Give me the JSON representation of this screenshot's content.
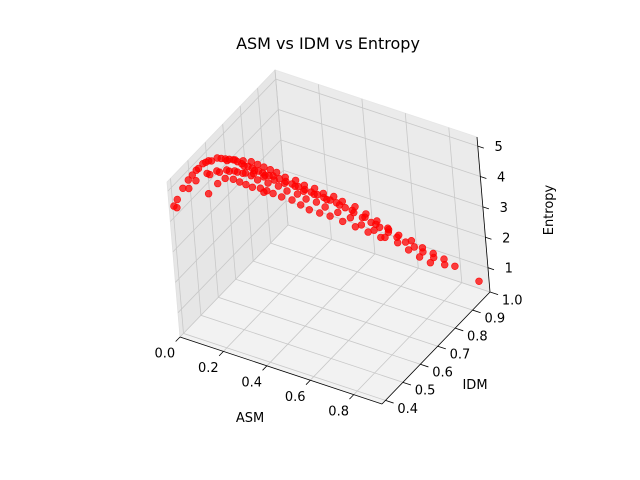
{
  "chart_data": {
    "type": "scatter",
    "projection": "3d",
    "title": "ASM vs IDM vs Entropy",
    "xlabel": "ASM",
    "ylabel": "IDM",
    "zlabel": "Entropy",
    "xlim": [
      0.0,
      0.93
    ],
    "ylim": [
      0.38,
      1.0
    ],
    "zlim": [
      0.2,
      5.3
    ],
    "xticks": [
      "0.0",
      "0.2",
      "0.4",
      "0.6",
      "0.8"
    ],
    "yticks": [
      "0.4",
      "0.5",
      "0.6",
      "0.7",
      "0.8",
      "0.9",
      "1.0"
    ],
    "zticks": [
      "1",
      "2",
      "3",
      "4",
      "5"
    ],
    "grid": true,
    "marker_color": "#ff0000",
    "series": [
      {
        "points": [
          [
            0.005,
            0.4,
            4.4
          ],
          [
            0.006,
            0.42,
            4.5
          ],
          [
            0.01,
            0.45,
            4.7
          ],
          [
            0.012,
            0.48,
            4.8
          ],
          [
            0.015,
            0.5,
            4.85
          ],
          [
            0.018,
            0.52,
            4.9
          ],
          [
            0.02,
            0.53,
            4.9
          ],
          [
            0.025,
            0.55,
            4.95
          ],
          [
            0.03,
            0.56,
            4.95
          ],
          [
            0.035,
            0.57,
            4.95
          ],
          [
            0.04,
            0.58,
            4.9
          ],
          [
            0.05,
            0.6,
            4.9
          ],
          [
            0.06,
            0.61,
            4.85
          ],
          [
            0.07,
            0.62,
            4.8
          ],
          [
            0.08,
            0.63,
            4.75
          ],
          [
            0.09,
            0.64,
            4.7
          ],
          [
            0.1,
            0.65,
            4.6
          ],
          [
            0.11,
            0.66,
            4.5
          ],
          [
            0.12,
            0.66,
            4.45
          ],
          [
            0.13,
            0.67,
            4.4
          ],
          [
            0.14,
            0.68,
            4.3
          ],
          [
            0.15,
            0.68,
            4.25
          ],
          [
            0.16,
            0.69,
            4.2
          ],
          [
            0.17,
            0.7,
            4.1
          ],
          [
            0.18,
            0.7,
            4.05
          ],
          [
            0.19,
            0.71,
            4.0
          ],
          [
            0.2,
            0.72,
            3.95
          ],
          [
            0.22,
            0.73,
            3.85
          ],
          [
            0.24,
            0.74,
            3.75
          ],
          [
            0.26,
            0.75,
            3.65
          ],
          [
            0.28,
            0.76,
            3.55
          ],
          [
            0.3,
            0.77,
            3.45
          ],
          [
            0.32,
            0.78,
            3.35
          ],
          [
            0.34,
            0.79,
            3.25
          ],
          [
            0.36,
            0.8,
            3.15
          ],
          [
            0.38,
            0.81,
            3.05
          ],
          [
            0.4,
            0.82,
            2.95
          ],
          [
            0.43,
            0.83,
            2.8
          ],
          [
            0.46,
            0.84,
            2.65
          ],
          [
            0.49,
            0.85,
            2.5
          ],
          [
            0.52,
            0.86,
            2.35
          ],
          [
            0.55,
            0.87,
            2.2
          ],
          [
            0.58,
            0.88,
            2.05
          ],
          [
            0.61,
            0.89,
            1.9
          ],
          [
            0.64,
            0.9,
            1.75
          ],
          [
            0.67,
            0.91,
            1.6
          ],
          [
            0.7,
            0.92,
            1.45
          ],
          [
            0.74,
            0.93,
            1.3
          ],
          [
            0.78,
            0.94,
            1.1
          ],
          [
            0.9,
            0.98,
            0.6
          ],
          [
            0.01,
            0.41,
            4.3
          ],
          [
            0.02,
            0.47,
            4.6
          ],
          [
            0.03,
            0.5,
            4.7
          ],
          [
            0.05,
            0.54,
            4.75
          ],
          [
            0.07,
            0.57,
            4.7
          ],
          [
            0.09,
            0.6,
            4.6
          ],
          [
            0.11,
            0.62,
            4.5
          ],
          [
            0.13,
            0.64,
            4.35
          ],
          [
            0.15,
            0.66,
            4.2
          ],
          [
            0.17,
            0.67,
            4.05
          ],
          [
            0.2,
            0.69,
            3.9
          ],
          [
            0.23,
            0.71,
            3.75
          ],
          [
            0.26,
            0.72,
            3.6
          ],
          [
            0.29,
            0.74,
            3.45
          ],
          [
            0.32,
            0.75,
            3.3
          ],
          [
            0.35,
            0.77,
            3.15
          ],
          [
            0.38,
            0.78,
            3.0
          ],
          [
            0.42,
            0.8,
            2.8
          ],
          [
            0.46,
            0.82,
            2.6
          ],
          [
            0.5,
            0.83,
            2.4
          ],
          [
            0.54,
            0.85,
            2.2
          ],
          [
            0.58,
            0.86,
            2.0
          ],
          [
            0.62,
            0.88,
            1.8
          ],
          [
            0.66,
            0.89,
            1.6
          ],
          [
            0.7,
            0.9,
            1.4
          ],
          [
            0.74,
            0.91,
            1.25
          ],
          [
            0.08,
            0.52,
            4.9
          ],
          [
            0.1,
            0.55,
            4.85
          ],
          [
            0.12,
            0.58,
            4.75
          ],
          [
            0.14,
            0.6,
            4.65
          ],
          [
            0.16,
            0.62,
            4.55
          ],
          [
            0.18,
            0.64,
            4.45
          ],
          [
            0.21,
            0.66,
            4.3
          ],
          [
            0.24,
            0.68,
            4.15
          ],
          [
            0.27,
            0.7,
            4.0
          ],
          [
            0.3,
            0.72,
            3.85
          ],
          [
            0.33,
            0.73,
            3.7
          ],
          [
            0.36,
            0.75,
            3.55
          ],
          [
            0.4,
            0.77,
            3.35
          ],
          [
            0.44,
            0.79,
            3.15
          ],
          [
            0.48,
            0.81,
            2.95
          ],
          [
            0.52,
            0.83,
            2.7
          ],
          [
            0.56,
            0.84,
            2.5
          ],
          [
            0.6,
            0.86,
            2.3
          ],
          [
            0.04,
            0.55,
            4.0
          ],
          [
            0.06,
            0.58,
            4.2
          ],
          [
            0.08,
            0.6,
            4.3
          ],
          [
            0.1,
            0.62,
            4.2
          ],
          [
            0.12,
            0.63,
            4.1
          ],
          [
            0.14,
            0.64,
            4.0
          ],
          [
            0.16,
            0.65,
            3.9
          ],
          [
            0.18,
            0.67,
            3.8
          ],
          [
            0.2,
            0.68,
            3.7
          ],
          [
            0.22,
            0.69,
            3.6
          ],
          [
            0.25,
            0.7,
            3.5
          ],
          [
            0.28,
            0.72,
            3.35
          ],
          [
            0.31,
            0.73,
            3.2
          ],
          [
            0.34,
            0.74,
            3.05
          ],
          [
            0.37,
            0.76,
            2.9
          ],
          [
            0.4,
            0.78,
            2.75
          ],
          [
            0.44,
            0.8,
            2.55
          ],
          [
            0.48,
            0.82,
            2.35
          ],
          [
            0.52,
            0.84,
            2.15
          ],
          [
            0.56,
            0.86,
            1.95
          ],
          [
            0.06,
            0.64,
            4.6
          ],
          [
            0.08,
            0.66,
            4.55
          ],
          [
            0.1,
            0.68,
            4.45
          ],
          [
            0.12,
            0.7,
            4.35
          ],
          [
            0.14,
            0.71,
            4.25
          ],
          [
            0.16,
            0.72,
            4.15
          ],
          [
            0.18,
            0.73,
            4.05
          ],
          [
            0.2,
            0.74,
            3.95
          ],
          [
            0.23,
            0.75,
            3.8
          ],
          [
            0.26,
            0.77,
            3.65
          ],
          [
            0.29,
            0.78,
            3.5
          ],
          [
            0.32,
            0.8,
            3.35
          ],
          [
            0.35,
            0.81,
            3.2
          ],
          [
            0.38,
            0.83,
            3.05
          ],
          [
            0.41,
            0.84,
            2.9
          ],
          [
            0.45,
            0.86,
            2.7
          ],
          [
            0.49,
            0.87,
            2.5
          ],
          [
            0.53,
            0.88,
            2.3
          ],
          [
            0.57,
            0.89,
            2.1
          ],
          [
            0.61,
            0.9,
            1.9
          ],
          [
            0.15,
            0.72,
            3.3
          ],
          [
            0.65,
            0.92,
            1.7
          ],
          [
            0.69,
            0.93,
            1.5
          ],
          [
            0.73,
            0.94,
            1.35
          ],
          [
            0.77,
            0.95,
            1.2
          ],
          [
            0.81,
            0.96,
            1.0
          ]
        ]
      }
    ]
  }
}
